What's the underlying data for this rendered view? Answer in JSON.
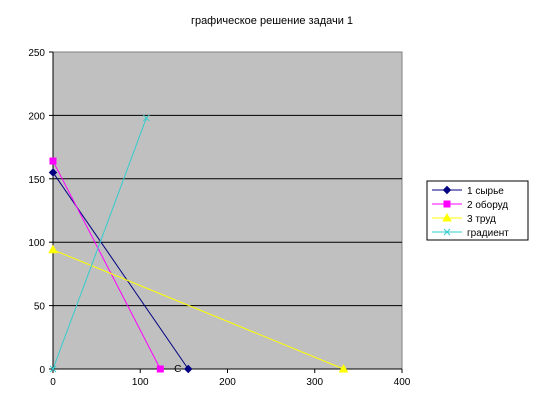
{
  "chart_data": {
    "type": "line",
    "title": "графическое решение задачи 1",
    "xlabel": "",
    "ylabel": "",
    "xlim": [
      0,
      400
    ],
    "ylim": [
      0,
      250
    ],
    "x_ticks": [
      "0",
      "100",
      "200",
      "300",
      "400"
    ],
    "y_ticks": [
      "0",
      "50",
      "100",
      "150",
      "200",
      "250"
    ],
    "grid": "horizontal",
    "plot_background": "#c0c0c0",
    "legend_position": "right",
    "series": [
      {
        "name": "1 сырье",
        "color": "#000080",
        "marker": "diamond",
        "points": [
          [
            0,
            155
          ],
          [
            155,
            0
          ]
        ]
      },
      {
        "name": "2 оборуд",
        "color": "#ff00ff",
        "marker": "square",
        "points": [
          [
            0,
            164
          ],
          [
            123,
            0
          ]
        ]
      },
      {
        "name": "3 труд",
        "color": "#ffff00",
        "marker": "triangle",
        "points": [
          [
            0,
            94
          ],
          [
            333,
            0
          ]
        ]
      },
      {
        "name": "градиент",
        "color": "#33cccc",
        "marker": "x",
        "points": [
          [
            0,
            0
          ],
          [
            107,
            198
          ]
        ]
      }
    ],
    "annotations": [
      {
        "text": "С",
        "x": 143,
        "y": 0
      }
    ]
  }
}
